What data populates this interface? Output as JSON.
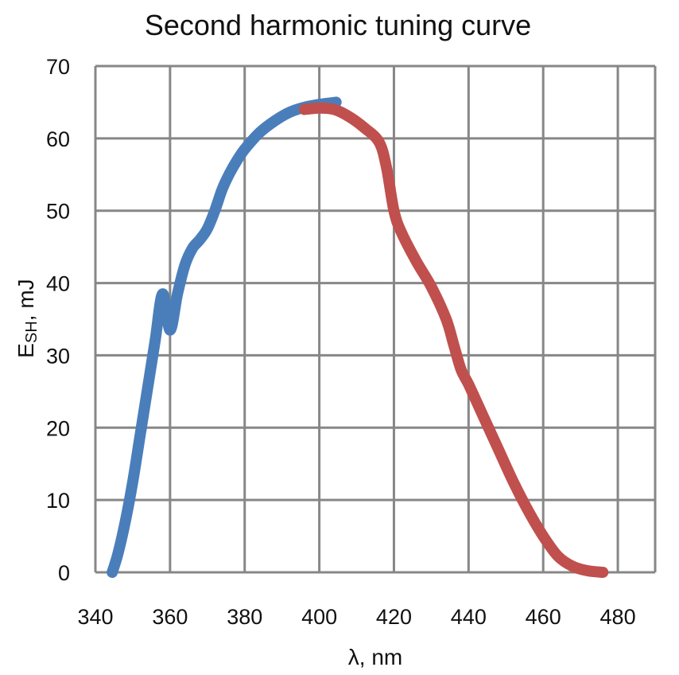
{
  "chart_data": {
    "type": "line",
    "title": "Second harmonic tuning curve",
    "xlabel": "λ, nm",
    "ylabel": {
      "main": "E",
      "sub": "SH",
      "unit": ", mJ"
    },
    "xlim": [
      340,
      490
    ],
    "ylim": [
      0,
      70
    ],
    "xticks": [
      340,
      360,
      380,
      400,
      420,
      440,
      460,
      480
    ],
    "yticks": [
      0,
      10,
      20,
      30,
      40,
      50,
      60,
      70
    ],
    "grid": true,
    "series": [
      {
        "color": "#4a7ebb",
        "x": [
          344.5,
          346,
          348,
          350,
          352,
          354,
          356,
          358,
          360,
          362,
          364,
          366,
          368,
          370,
          372,
          374,
          376,
          378,
          380,
          384,
          388,
          392,
          396,
          400,
          404.5
        ],
        "y": [
          0,
          2.5,
          7,
          12.5,
          19,
          25.5,
          32,
          38.5,
          33.5,
          38.5,
          42.5,
          44.8,
          46,
          47.5,
          50,
          53,
          55.2,
          57,
          58.5,
          60.8,
          62.4,
          63.6,
          64.3,
          64.7,
          65
        ]
      },
      {
        "color": "#c0504d",
        "x": [
          396,
          400,
          404,
          408,
          412,
          416,
          418,
          420,
          422,
          426,
          430,
          434,
          436,
          438,
          440,
          444,
          448,
          452,
          456,
          460,
          464,
          468,
          472,
          476
        ],
        "y": [
          64,
          64.2,
          64,
          63,
          61.5,
          59.5,
          56,
          50,
          47,
          43,
          39.5,
          35,
          31.5,
          28,
          26,
          21.5,
          17,
          12.5,
          8.5,
          5,
          2.2,
          0.8,
          0.2,
          0
        ]
      }
    ]
  }
}
